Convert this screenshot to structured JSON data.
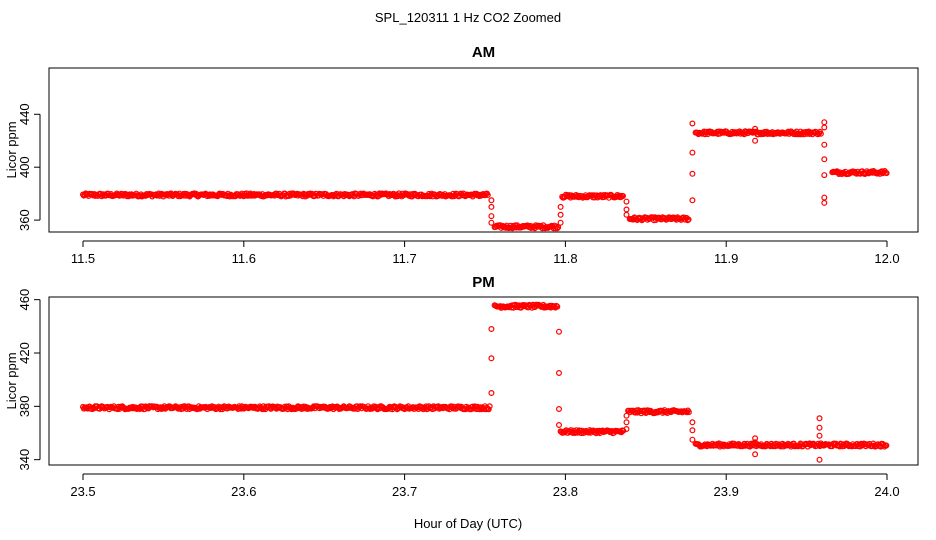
{
  "chart_data": [
    {
      "type": "scatter",
      "title": "AM",
      "xlabel": "",
      "ylabel": "Licor ppm",
      "xlim": [
        11.5,
        12.0
      ],
      "ylim": [
        351,
        475
      ],
      "xticks": [
        "11.5",
        "11.6",
        "11.7",
        "11.8",
        "11.9",
        "12.0"
      ],
      "yticks": [
        "360",
        "400",
        "440"
      ],
      "grid": false,
      "marker": "open-circle",
      "color": "#ff0000",
      "segments": [
        {
          "x_start": 11.5,
          "x_end": 11.752,
          "y": 379
        },
        {
          "x_start": 11.756,
          "x_end": 11.796,
          "y": 355
        },
        {
          "x_start": 11.798,
          "x_end": 11.836,
          "y": 378
        },
        {
          "x_start": 11.84,
          "x_end": 11.877,
          "y": 361
        },
        {
          "x_start": 11.881,
          "x_end": 11.959,
          "y": 426
        },
        {
          "x_start": 11.966,
          "x_end": 12.0,
          "y": 396
        }
      ],
      "transitions": [
        {
          "x": 11.754,
          "y": [
            375,
            370,
            363,
            358
          ]
        },
        {
          "x": 11.797,
          "y": [
            358,
            364,
            370
          ]
        },
        {
          "x": 11.838,
          "y": [
            374,
            368,
            364
          ]
        },
        {
          "x": 11.879,
          "y": [
            375,
            395,
            411,
            433
          ]
        },
        {
          "x": 11.918,
          "y": [
            429,
            420
          ]
        },
        {
          "x": 11.961,
          "y": [
            430,
            434,
            417,
            406,
            394,
            377,
            373
          ]
        }
      ]
    },
    {
      "type": "scatter",
      "title": "PM",
      "xlabel": "",
      "ylabel": "Licor ppm",
      "xlim": [
        23.5,
        24.0
      ],
      "ylim": [
        336,
        462
      ],
      "xticks": [
        "23.5",
        "23.6",
        "23.7",
        "23.8",
        "23.9",
        "24.0"
      ],
      "yticks": [
        "340",
        "380",
        "420",
        "460"
      ],
      "grid": false,
      "marker": "open-circle",
      "color": "#ff0000",
      "segments": [
        {
          "x_start": 23.5,
          "x_end": 23.753,
          "y": 379
        },
        {
          "x_start": 23.756,
          "x_end": 23.795,
          "y": 455
        },
        {
          "x_start": 23.797,
          "x_end": 23.836,
          "y": 361
        },
        {
          "x_start": 23.839,
          "x_end": 23.877,
          "y": 376
        },
        {
          "x_start": 23.881,
          "x_end": 24.0,
          "y": 351
        }
      ],
      "transitions": [
        {
          "x": 23.754,
          "y": [
            390,
            416,
            438
          ]
        },
        {
          "x": 23.796,
          "y": [
            436,
            405,
            378,
            366
          ]
        },
        {
          "x": 23.838,
          "y": [
            363,
            368,
            373
          ]
        },
        {
          "x": 23.879,
          "y": [
            368,
            362,
            355
          ]
        },
        {
          "x": 23.918,
          "y": [
            353,
            356,
            344
          ]
        },
        {
          "x": 23.958,
          "y": [
            371,
            364,
            358,
            340
          ]
        }
      ]
    }
  ],
  "figure": {
    "title": "SPL_120311  1 Hz CO2 Zoomed",
    "xlabel": "Hour of Day (UTC)"
  }
}
